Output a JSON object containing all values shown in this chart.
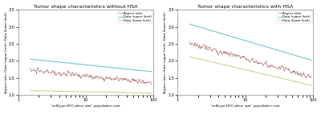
{
  "left_title": "Tumor shape characteristics without HSA",
  "right_title": "Tumor shape characteristics with HSA",
  "xlabel": "'celltype.HCC_{ₑₗₑₘₑₙₜₑₗ} size' population size",
  "ylabel": "Aspect ratio, Data (upper limit), Data (lower limit)",
  "xmin": 1,
  "xmax": 100,
  "ymin": 1.0,
  "ymax": 3.5,
  "yticks": [
    1.0,
    1.5,
    2.0,
    2.5,
    3.0,
    3.5
  ],
  "left_upper_start": 2.05,
  "left_upper_end": 1.68,
  "left_lower_start": 1.12,
  "left_lower_end": 1.05,
  "right_upper_start": 3.08,
  "right_upper_end": 2.02,
  "right_lower_start": 2.12,
  "right_lower_end": 1.28,
  "aspect_color": "#b07878",
  "upper_color": "#70c8c8",
  "lower_color": "#c8d890",
  "legend_aspect": "Aspect ratio",
  "legend_upper": "Data (upper limit)",
  "legend_lower": "Data (lower limit)",
  "background_color": "#ffffff",
  "left_noisy_start": 1.72,
  "left_noisy_end": 1.35,
  "right_noisy_start": 2.52,
  "right_noisy_end": 1.52
}
